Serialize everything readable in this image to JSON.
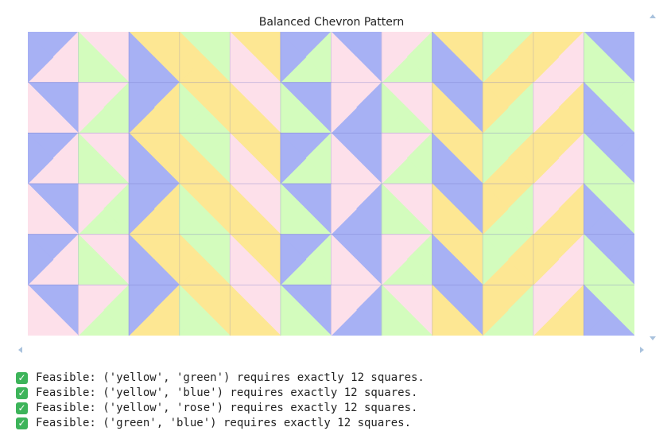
{
  "plot": {
    "title": "Balanced Chevron Pattern",
    "cols": 12,
    "rows": 6,
    "colors": {
      "B": "#a7b1f4",
      "R": "#fde0ea",
      "G": "#d3fcbd",
      "Y": "#fde793"
    },
    "cells": [
      [
        [
          "B",
          "R",
          "R",
          "B"
        ],
        [
          "R",
          "R",
          "G",
          "G"
        ],
        [
          "Y",
          "Y",
          "B",
          "B"
        ],
        [
          "G",
          "G",
          "Y",
          "Y"
        ],
        [
          "Y",
          "Y",
          "R",
          "R"
        ],
        [
          "B",
          "G",
          "G",
          "B"
        ],
        [
          "B",
          "B",
          "R",
          "R"
        ],
        [
          "R",
          "G",
          "G",
          "R"
        ],
        [
          "Y",
          "Y",
          "B",
          "B"
        ],
        [
          "G",
          "Y",
          "Y",
          "G"
        ],
        [
          "Y",
          "R",
          "R",
          "Y"
        ],
        [
          "B",
          "B",
          "G",
          "G"
        ]
      ],
      [
        [
          "B",
          "B",
          "R",
          "R"
        ],
        [
          "R",
          "G",
          "G",
          "R"
        ],
        [
          "B",
          "Y",
          "Y",
          "B"
        ],
        [
          "Y",
          "Y",
          "G",
          "G"
        ],
        [
          "R",
          "R",
          "Y",
          "Y"
        ],
        [
          "B",
          "B",
          "G",
          "G"
        ],
        [
          "R",
          "B",
          "B",
          "R"
        ],
        [
          "R",
          "R",
          "G",
          "G"
        ],
        [
          "B",
          "B",
          "Y",
          "Y"
        ],
        [
          "Y",
          "G",
          "G",
          "Y"
        ],
        [
          "R",
          "Y",
          "Y",
          "R"
        ],
        [
          "G",
          "G",
          "B",
          "B"
        ]
      ],
      [
        [
          "B",
          "R",
          "R",
          "B"
        ],
        [
          "R",
          "R",
          "G",
          "G"
        ],
        [
          "Y",
          "Y",
          "B",
          "B"
        ],
        [
          "G",
          "G",
          "Y",
          "Y"
        ],
        [
          "Y",
          "Y",
          "R",
          "R"
        ],
        [
          "B",
          "G",
          "G",
          "B"
        ],
        [
          "B",
          "B",
          "R",
          "R"
        ],
        [
          "R",
          "G",
          "G",
          "R"
        ],
        [
          "Y",
          "Y",
          "B",
          "B"
        ],
        [
          "G",
          "Y",
          "Y",
          "G"
        ],
        [
          "Y",
          "R",
          "R",
          "Y"
        ],
        [
          "B",
          "B",
          "G",
          "G"
        ]
      ],
      [
        [
          "B",
          "B",
          "R",
          "R"
        ],
        [
          "R",
          "G",
          "G",
          "R"
        ],
        [
          "B",
          "Y",
          "Y",
          "B"
        ],
        [
          "Y",
          "Y",
          "G",
          "G"
        ],
        [
          "R",
          "R",
          "Y",
          "Y"
        ],
        [
          "B",
          "B",
          "G",
          "G"
        ],
        [
          "R",
          "B",
          "B",
          "R"
        ],
        [
          "R",
          "R",
          "G",
          "G"
        ],
        [
          "B",
          "B",
          "Y",
          "Y"
        ],
        [
          "Y",
          "G",
          "G",
          "Y"
        ],
        [
          "R",
          "Y",
          "Y",
          "R"
        ],
        [
          "G",
          "G",
          "B",
          "B"
        ]
      ],
      [
        [
          "B",
          "R",
          "R",
          "B"
        ],
        [
          "R",
          "R",
          "G",
          "G"
        ],
        [
          "Y",
          "Y",
          "B",
          "B"
        ],
        [
          "G",
          "G",
          "Y",
          "Y"
        ],
        [
          "Y",
          "Y",
          "R",
          "R"
        ],
        [
          "B",
          "G",
          "G",
          "B"
        ],
        [
          "B",
          "B",
          "R",
          "R"
        ],
        [
          "R",
          "G",
          "G",
          "R"
        ],
        [
          "Y",
          "Y",
          "B",
          "B"
        ],
        [
          "G",
          "Y",
          "Y",
          "G"
        ],
        [
          "Y",
          "R",
          "R",
          "Y"
        ],
        [
          "B",
          "B",
          "G",
          "G"
        ]
      ],
      [
        [
          "B",
          "B",
          "R",
          "R"
        ],
        [
          "R",
          "G",
          "G",
          "R"
        ],
        [
          "B",
          "Y",
          "Y",
          "B"
        ],
        [
          "Y",
          "Y",
          "G",
          "G"
        ],
        [
          "R",
          "R",
          "Y",
          "Y"
        ],
        [
          "B",
          "B",
          "G",
          "G"
        ],
        [
          "R",
          "B",
          "B",
          "R"
        ],
        [
          "R",
          "R",
          "G",
          "G"
        ],
        [
          "B",
          "B",
          "Y",
          "Y"
        ],
        [
          "Y",
          "G",
          "G",
          "Y"
        ],
        [
          "R",
          "Y",
          "Y",
          "R"
        ],
        [
          "G",
          "G",
          "B",
          "B"
        ]
      ]
    ]
  },
  "log": [
    {
      "icon": "check-mark-icon",
      "text": "Feasible: ('yellow', 'green') requires exactly 12 squares."
    },
    {
      "icon": "check-mark-icon",
      "text": "Feasible: ('yellow', 'blue') requires exactly 12 squares."
    },
    {
      "icon": "check-mark-icon",
      "text": "Feasible: ('yellow', 'rose') requires exactly 12 squares."
    },
    {
      "icon": "check-mark-icon",
      "text": "Feasible: ('green', 'blue') requires exactly 12 squares."
    }
  ]
}
